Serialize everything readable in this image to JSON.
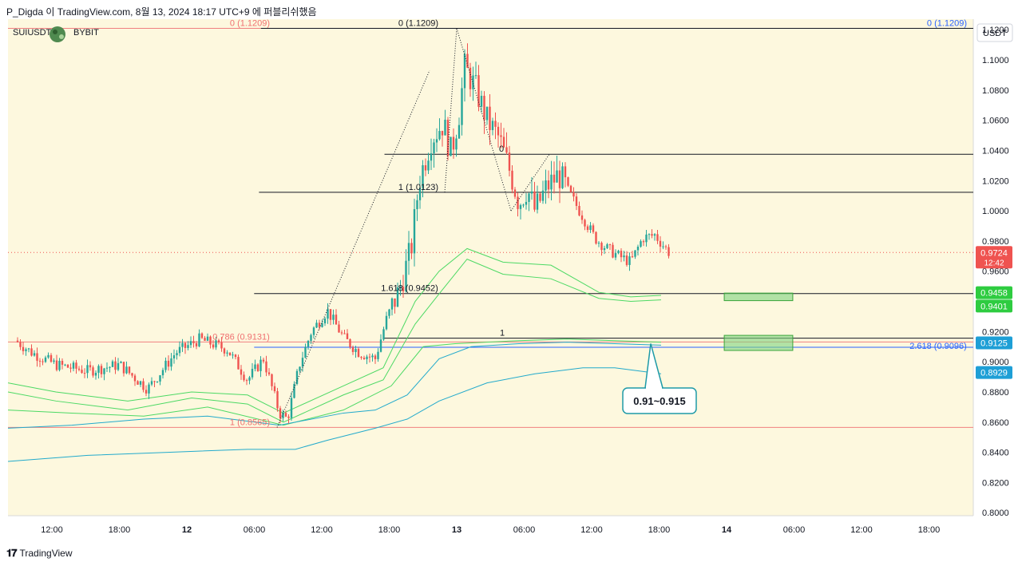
{
  "header": {
    "caption": "P_Digda 이 TradingView.com, 8월 13, 2024 18:17 UTC+9 에 퍼블리쉬했음"
  },
  "symbol": {
    "left": "SUIUSDT",
    "exchange": "BYBIT",
    "currency": "USDT"
  },
  "footer": {
    "brand": "TradingView"
  },
  "colors": {
    "background": "#fdf8de",
    "up": "#26a69a",
    "down": "#ef5350",
    "band_green": "#4cd964",
    "band_cyan": "#22aacc",
    "fib_red": "#f08080",
    "fib_blue": "#2962ff",
    "zone": "#7ed37e"
  },
  "chart_data": {
    "type": "candlestick",
    "x_ticks": [
      "12:00",
      "18:00",
      "12",
      "06:00",
      "12:00",
      "18:00",
      "13",
      "06:00",
      "12:00",
      "18:00",
      "14",
      "06:00",
      "12:00",
      "18:00"
    ],
    "y_ticks": [
      "1.1200",
      "1.1000",
      "1.0800",
      "1.0600",
      "1.0400",
      "1.0200",
      "1.0000",
      "0.9800",
      "0.9600",
      "0.9200",
      "0.9000",
      "0.8800",
      "0.8600",
      "0.8400",
      "0.8200",
      "0.8000"
    ],
    "ylim": [
      0.798,
      1.127
    ],
    "price_badges": [
      {
        "value": "0.9724",
        "sub": "12:42",
        "color": "#ef5350"
      },
      {
        "value": "0.9458",
        "color": "#2ecc40"
      },
      {
        "value": "0.9401",
        "color": "#2ecc40"
      },
      {
        "value": "0.9125",
        "color": "#1e9fd6"
      },
      {
        "value": "0.8929",
        "color": "#1e9fd6"
      }
    ],
    "fib_labels": [
      {
        "text": "0 (1.1209)",
        "color": "#f07070"
      },
      {
        "text": "0 (1.1209)",
        "color": "#131722"
      },
      {
        "text": "0 (1.1209)",
        "color": "#2962ff"
      },
      {
        "text": "0",
        "color": "#131722"
      },
      {
        "text": "1 (1.0123)",
        "color": "#131722"
      },
      {
        "text": "1.618 (0.9452)",
        "color": "#131722"
      },
      {
        "text": "0.786 (0.9131)",
        "color": "#f07070"
      },
      {
        "text": "1",
        "color": "#131722"
      },
      {
        "text": "2.618 (0.9096)",
        "color": "#2962ff"
      },
      {
        "text": "1 (0.8565)",
        "color": "#f07070"
      }
    ],
    "levels": [
      {
        "name": "fib-0-red",
        "y": 1.1209,
        "x0": 0.0,
        "x1": 0.262,
        "color": "#f08080"
      },
      {
        "name": "fib-0-black",
        "y": 1.1209,
        "x0": 0.262,
        "x1": 1.0,
        "color": "#131722"
      },
      {
        "name": "fib-0-second",
        "y": 1.0375,
        "x0": 0.39,
        "x1": 1.0,
        "color": "#131722"
      },
      {
        "name": "fib-1-1.0123",
        "y": 1.0123,
        "x0": 0.26,
        "x1": 1.0,
        "color": "#131722"
      },
      {
        "name": "fib-1.618",
        "y": 0.9452,
        "x0": 0.255,
        "x1": 1.0,
        "color": "#131722"
      },
      {
        "name": "fib-0.786",
        "y": 0.9131,
        "x0": 0.0,
        "x1": 1.0,
        "color": "#f08080"
      },
      {
        "name": "fib-1-second",
        "y": 0.9156,
        "x0": 0.39,
        "x1": 1.0,
        "color": "#131722"
      },
      {
        "name": "fib-2.618",
        "y": 0.9096,
        "x0": 0.255,
        "x1": 1.0,
        "color": "#2962ff"
      },
      {
        "name": "fib-1-0.8565",
        "y": 0.8565,
        "x0": 0.0,
        "x1": 1.0,
        "color": "#f08080"
      }
    ],
    "zones": [
      {
        "name": "zone-upper",
        "y0": 0.9405,
        "y1": 0.9455,
        "x0": 0.742,
        "x1": 0.813
      },
      {
        "name": "zone-lower",
        "y0": 0.9075,
        "y1": 0.9175,
        "x0": 0.742,
        "x1": 0.813
      }
    ],
    "callout": {
      "text": "0.91~0.915",
      "value": 0.912
    },
    "current_price": 0.9724
  }
}
